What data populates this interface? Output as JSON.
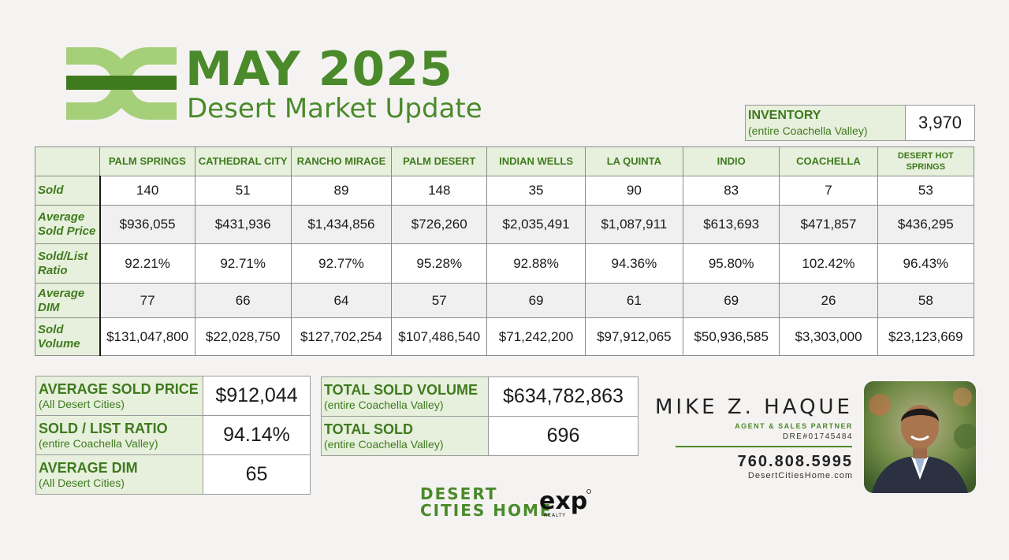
{
  "header": {
    "title": "MAY 2025",
    "subtitle": "Desert Market Update"
  },
  "inventory": {
    "label": "INVENTORY",
    "sublabel": "(entire Coachella Valley)",
    "value": "3,970"
  },
  "table": {
    "columns": [
      "PALM SPRINGS",
      "CATHEDRAL CITY",
      "RANCHO MIRAGE",
      "PALM DESERT",
      "INDIAN WELLS",
      "LA QUINTA",
      "INDIO",
      "COACHELLA",
      "DESERT HOT SPRINGS"
    ],
    "rows": [
      {
        "label": "Sold",
        "values": [
          "140",
          "51",
          "89",
          "148",
          "35",
          "90",
          "83",
          "7",
          "53"
        ]
      },
      {
        "label": "Average Sold Price",
        "values": [
          "$936,055",
          "$431,936",
          "$1,434,856",
          "$726,260",
          "$2,035,491",
          "$1,087,911",
          "$613,693",
          "$471,857",
          "$436,295"
        ]
      },
      {
        "label": "Sold/List Ratio",
        "values": [
          "92.21%",
          "92.71%",
          "92.77%",
          "95.28%",
          "92.88%",
          "94.36%",
          "95.80%",
          "102.42%",
          "96.43%"
        ]
      },
      {
        "label": "Average DIM",
        "values": [
          "77",
          "66",
          "64",
          "57",
          "69",
          "61",
          "69",
          "26",
          "58"
        ]
      },
      {
        "label": "Sold Volume",
        "values": [
          "$131,047,800",
          "$22,028,750",
          "$127,702,254",
          "$107,486,540",
          "$71,242,200",
          "$97,912,065",
          "$50,936,585",
          "$3,303,000",
          "$23,123,669"
        ]
      }
    ]
  },
  "summary_left": [
    {
      "label": "AVERAGE SOLD PRICE",
      "sublabel": "(All Desert Cities)",
      "value": "$912,044"
    },
    {
      "label": "SOLD / LIST RATIO",
      "sublabel": "(entire Coachella Valley)",
      "value": "94.14%"
    },
    {
      "label": "AVERAGE DIM",
      "sublabel": "(All Desert Cities)",
      "value": "65"
    }
  ],
  "summary_right": [
    {
      "label": "TOTAL SOLD VOLUME",
      "sublabel": "(entire Coachella Valley)",
      "value": "$634,782,863"
    },
    {
      "label": "TOTAL SOLD",
      "sublabel": "(entire Coachella Valley)",
      "value": "696"
    }
  ],
  "agent": {
    "name": "MIKE Z. HAQUE",
    "title": "AGENT & SALES PARTNER",
    "dre": "DRE#01745484",
    "phone": "760.808.5995",
    "website": "DesertCitiesHome.com"
  },
  "brand": {
    "line1": "DESERT",
    "line2": "CITIES HOME",
    "exp_logo_text": "exp",
    "exp_sub_text": "REALTY"
  },
  "colors": {
    "accent_green": "#4a8a2a",
    "header_green_bg": "#e7f0dc",
    "logo_light_green": "#a6cf7a",
    "background": "#f5f3f1"
  }
}
